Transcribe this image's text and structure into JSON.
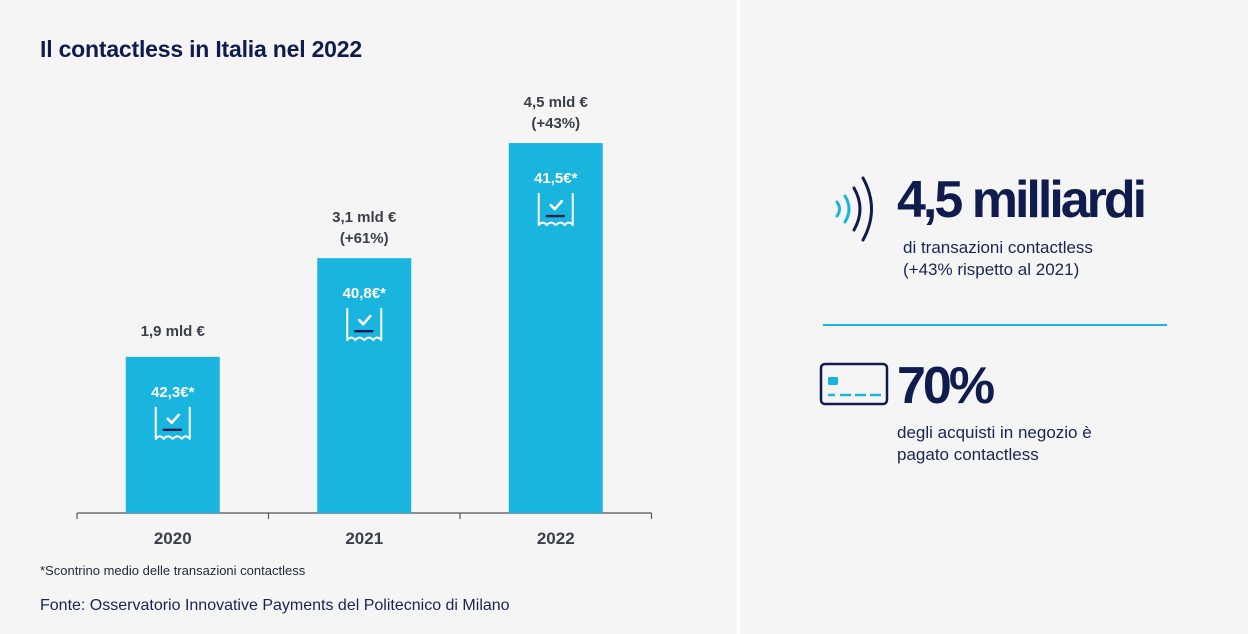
{
  "chart_data": {
    "type": "bar",
    "title": "Il contactless in Italia nel 2022",
    "categories": [
      "2020",
      "2021",
      "2022"
    ],
    "values": [
      1.9,
      3.1,
      4.5
    ],
    "unit": "mld €",
    "value_labels": [
      "1,9 mld €",
      "3,1 mld €",
      "4,5 mld €"
    ],
    "growth_labels": [
      "",
      "(+61%)",
      "(+43%)"
    ],
    "inner_labels": [
      "42,3€*",
      "40,8€*",
      "41,5€*"
    ],
    "ylim": [
      0,
      5
    ],
    "xlabel": "",
    "ylabel": "",
    "grid": false,
    "bar_color": "#1ab5de"
  },
  "footnote": "*Scontrino medio delle transazioni contactless",
  "source": "Fonte: Osservatorio Innovative Payments del Politecnico di Milano",
  "stats": {
    "transactions": {
      "value": "4,5 milliardi",
      "line1": "di transazioni contactless",
      "line2": "(+43% rispetto al 2021)",
      "icon": "contactless-icon"
    },
    "share": {
      "value": "70%",
      "line1": "degli acquisti in negozio è",
      "line2": "pagato contactless",
      "icon": "credit-card-icon"
    }
  },
  "colors": {
    "accent": "#1ab5de",
    "navy": "#0f1c4d",
    "background": "#f5f5f6"
  }
}
